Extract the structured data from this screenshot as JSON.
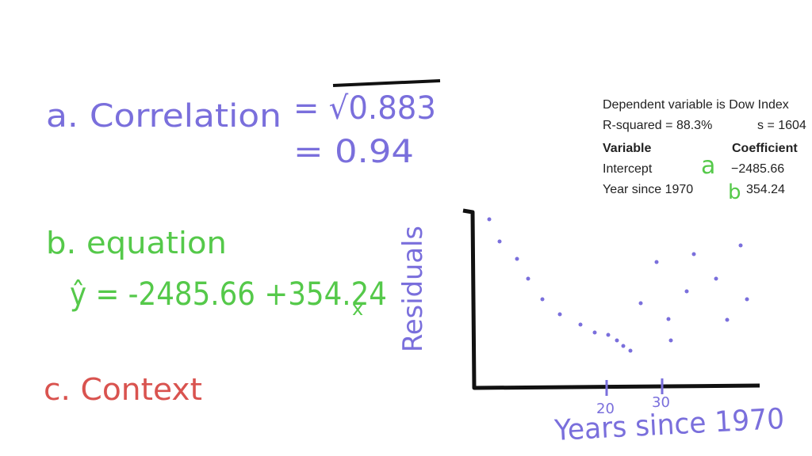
{
  "part_a": {
    "label": "a. Correlation",
    "expression": "= √0.883",
    "result": "= 0.94"
  },
  "part_b": {
    "label": "b. equation",
    "equation": "ŷ = -2485.66 +354.24",
    "variable": "x"
  },
  "part_c": {
    "label": "c. Context"
  },
  "regression_output": {
    "title": "Dependent variable is Dow Index",
    "r_squared": "R-squared = 88.3%",
    "s": "s = 1604",
    "header": [
      "Variable",
      "Coefficient"
    ],
    "rows": [
      [
        "Intercept",
        "−2485.66"
      ],
      [
        "Year since 1970",
        "354.24"
      ]
    ],
    "annotations": [
      "a",
      "b"
    ]
  },
  "residual_sketch": {
    "y_label": "Residuals",
    "x_label": "Years since 1970",
    "x_ticks": [
      "20",
      "30"
    ]
  }
}
